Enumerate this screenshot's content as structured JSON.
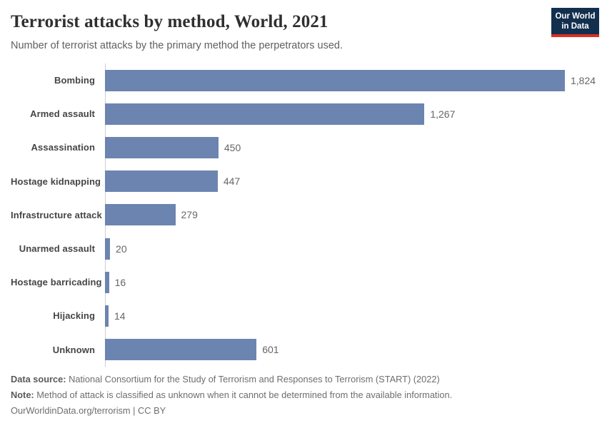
{
  "header": {
    "title": "Terrorist attacks by method, World, 2021",
    "subtitle": "Number of terrorist attacks by the primary method the perpetrators used.",
    "logo": {
      "line1": "Our World",
      "line2": "in Data",
      "bg_color": "#132f4e",
      "accent_color": "#dc2e22"
    }
  },
  "chart_data": {
    "type": "bar",
    "orientation": "horizontal",
    "title": "Terrorist attacks by method, World, 2021",
    "categories": [
      "Bombing",
      "Armed assault",
      "Assassination",
      "Hostage kidnapping",
      "Infrastructure attack",
      "Unarmed assault",
      "Hostage barricading",
      "Hijacking",
      "Unknown"
    ],
    "values": [
      1824,
      1267,
      450,
      447,
      279,
      20,
      16,
      14,
      601
    ],
    "value_labels": [
      "1,824",
      "1,267",
      "450",
      "447",
      "279",
      "20",
      "16",
      "14",
      "601"
    ],
    "xlim": [
      0,
      1824
    ],
    "grid": false,
    "legend": "none",
    "bar_color": "#6c84b0",
    "axis_line_color": "#cfcfcf"
  },
  "footer": {
    "data_source_label": "Data source:",
    "data_source_text": " National Consortium for the Study of Terrorism and Responses to Terrorism (START) (2022)",
    "note_label": "Note:",
    "note_text": " Method of attack is classified as unknown when it cannot be determined from the available information.",
    "license_text": "OurWorldinData.org/terrorism | CC BY"
  }
}
